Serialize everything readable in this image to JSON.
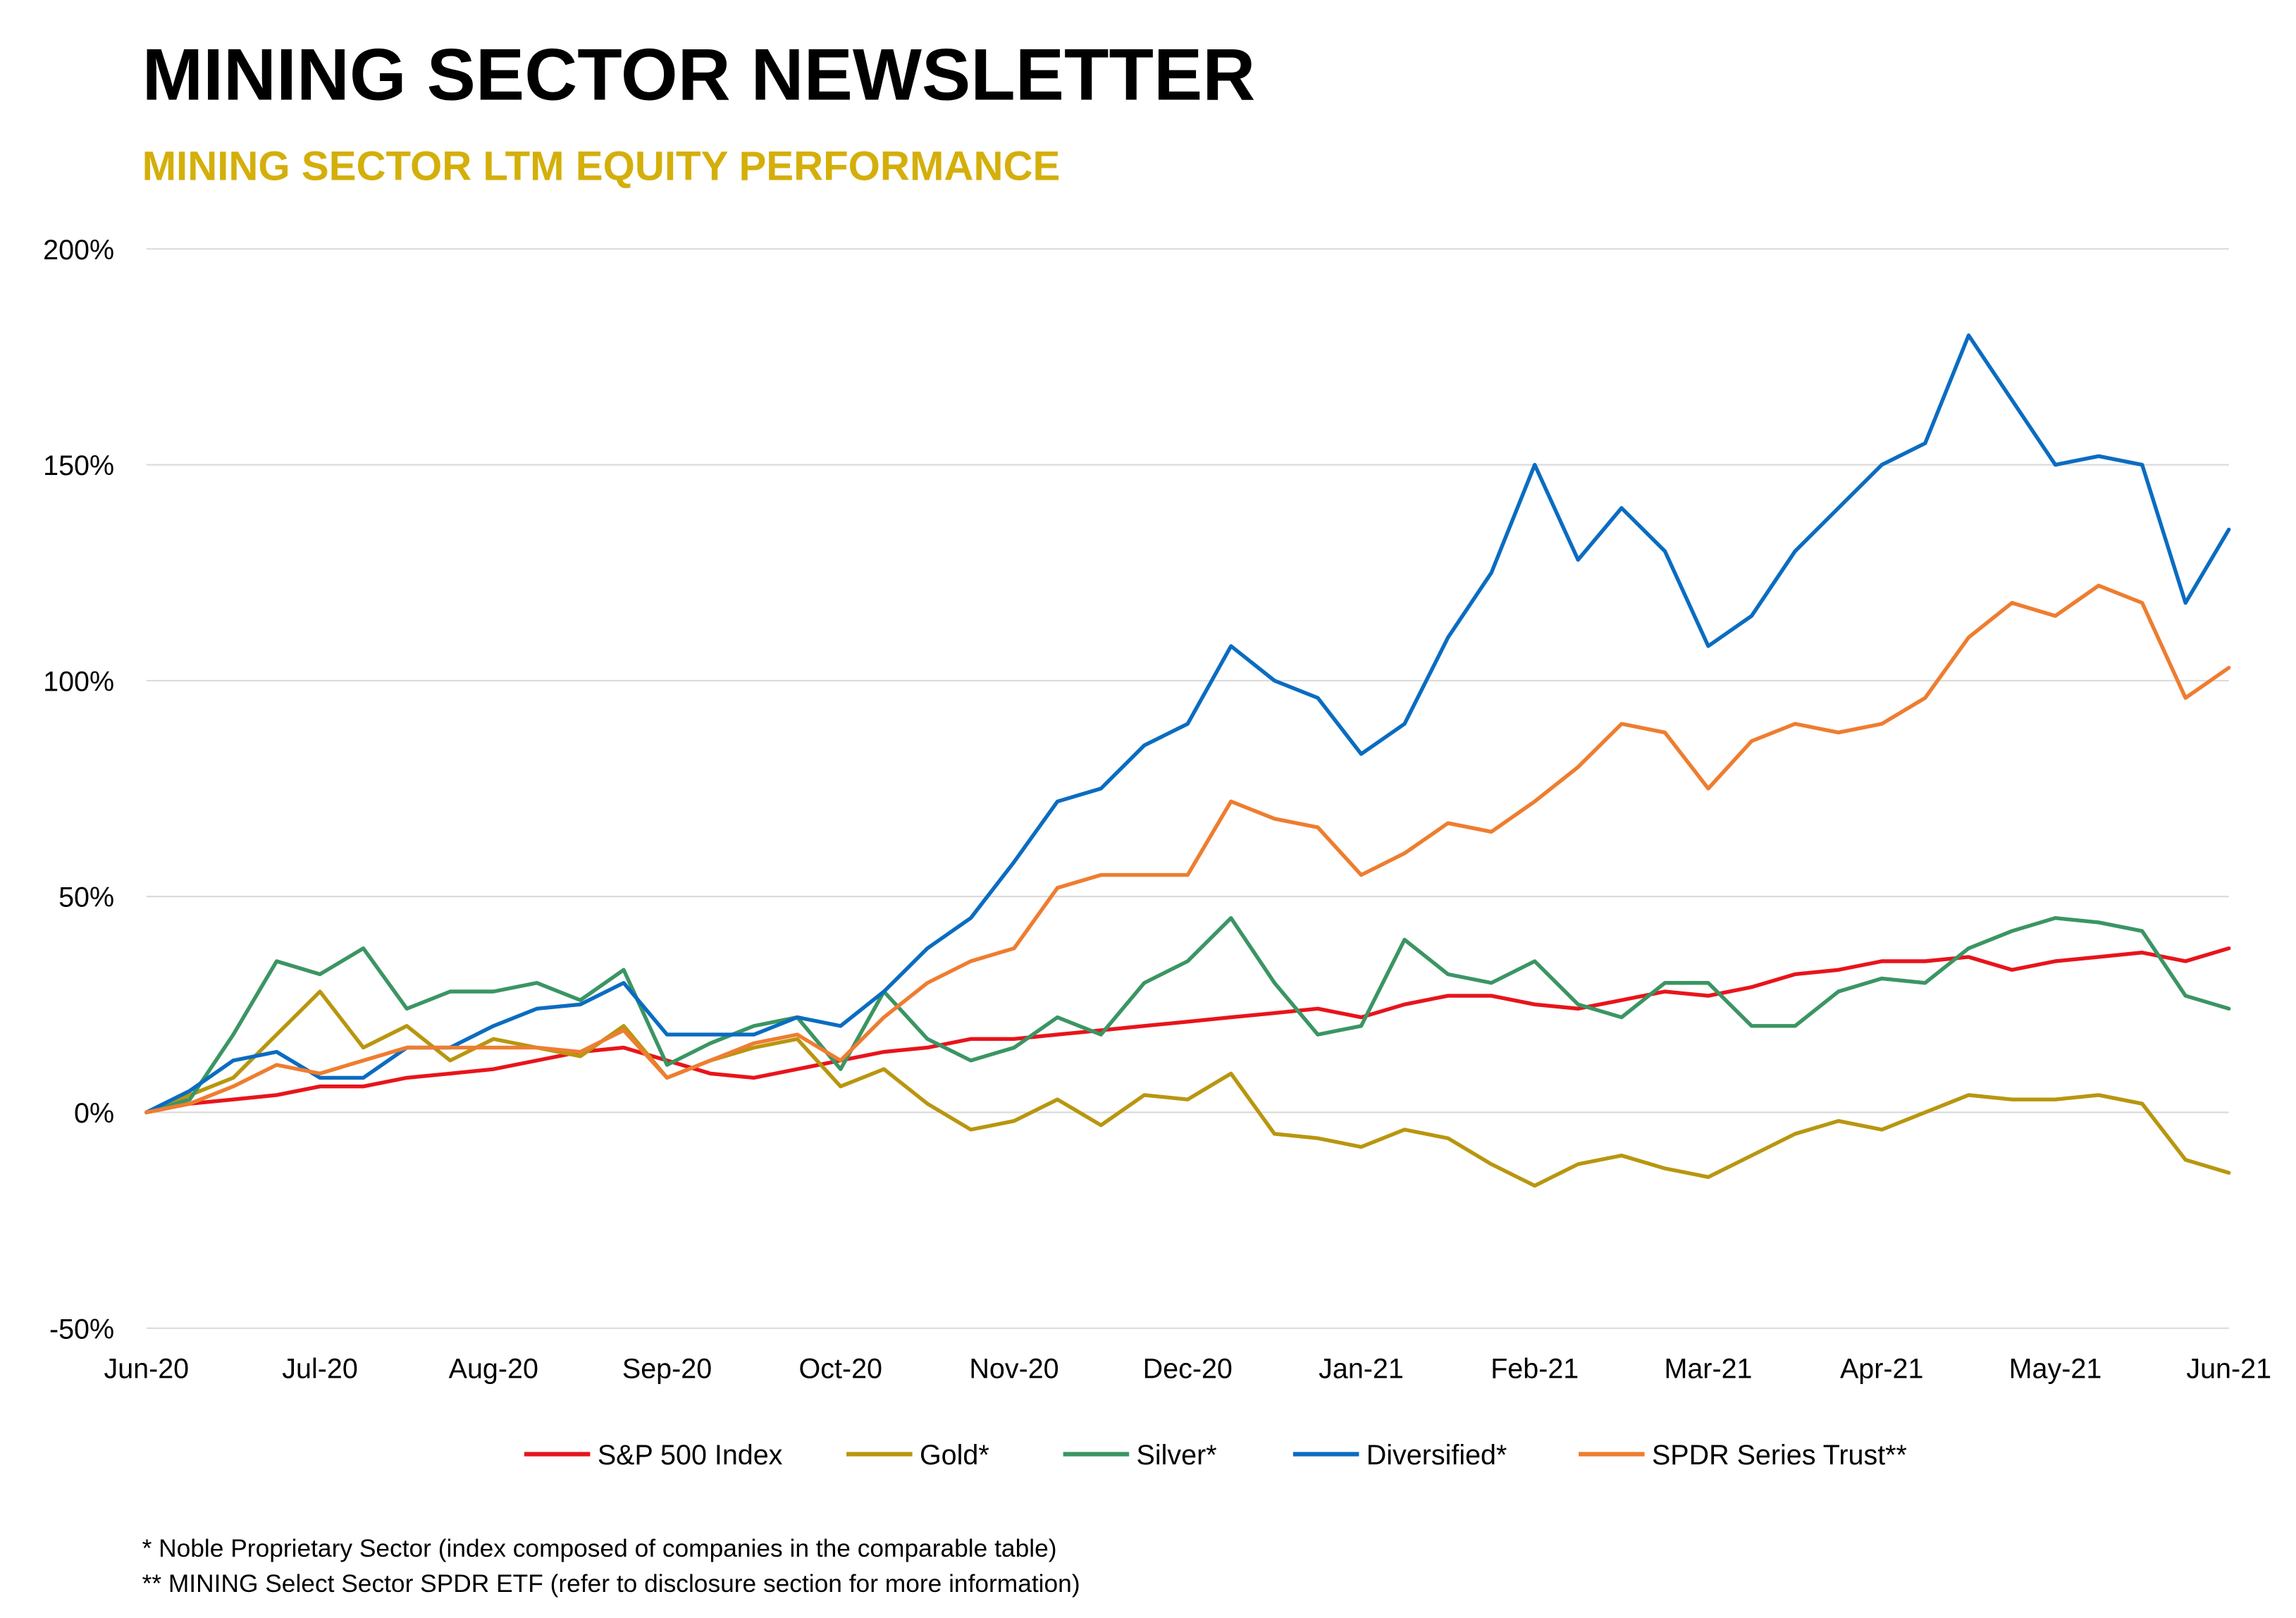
{
  "header": {
    "title": "MINING SECTOR NEWSLETTER",
    "subtitle": "MINING SECTOR LTM EQUITY PERFORMANCE"
  },
  "footnotes": [
    "* Noble Proprietary Sector (index composed of companies in the comparable table)",
    "** MINING Select Sector SPDR ETF (refer to disclosure section for more information)"
  ],
  "chart_data": {
    "type": "line",
    "title": "",
    "xlabel": "",
    "ylabel": "",
    "x_ticks": [
      "Jun-20",
      "Jul-20",
      "Aug-20",
      "Sep-20",
      "Oct-20",
      "Nov-20",
      "Dec-20",
      "Jan-21",
      "Feb-21",
      "Mar-21",
      "Apr-21",
      "May-21",
      "Jun-21"
    ],
    "y_ticks": [
      "200%",
      "150%",
      "100%",
      "50%",
      "0%",
      "-50%"
    ],
    "ylim": [
      -50,
      200
    ],
    "grid": "horizontal",
    "legend_position": "bottom",
    "series": [
      {
        "name": "S&P 500 Index",
        "color": "#E8141B",
        "points": [
          [
            0,
            0
          ],
          [
            0.25,
            2
          ],
          [
            0.5,
            3
          ],
          [
            0.75,
            4
          ],
          [
            1,
            6
          ],
          [
            1.25,
            6
          ],
          [
            1.5,
            8
          ],
          [
            1.75,
            9
          ],
          [
            2,
            10
          ],
          [
            2.25,
            12
          ],
          [
            2.5,
            14
          ],
          [
            2.75,
            15
          ],
          [
            3,
            12
          ],
          [
            3.25,
            9
          ],
          [
            3.5,
            8
          ],
          [
            3.75,
            10
          ],
          [
            4,
            12
          ],
          [
            4.25,
            14
          ],
          [
            4.5,
            15
          ],
          [
            4.75,
            17
          ],
          [
            5,
            17
          ],
          [
            5.25,
            18
          ],
          [
            5.5,
            19
          ],
          [
            5.75,
            20
          ],
          [
            6,
            21
          ],
          [
            6.25,
            22
          ],
          [
            6.5,
            23
          ],
          [
            6.75,
            24
          ],
          [
            7,
            22
          ],
          [
            7.25,
            25
          ],
          [
            7.5,
            27
          ],
          [
            7.75,
            27
          ],
          [
            8,
            25
          ],
          [
            8.25,
            24
          ],
          [
            8.5,
            26
          ],
          [
            8.75,
            28
          ],
          [
            9,
            27
          ],
          [
            9.25,
            29
          ],
          [
            9.5,
            32
          ],
          [
            9.75,
            33
          ],
          [
            10,
            35
          ],
          [
            10.25,
            35
          ],
          [
            10.5,
            36
          ],
          [
            10.75,
            33
          ],
          [
            11,
            35
          ],
          [
            11.25,
            36
          ],
          [
            11.5,
            37
          ],
          [
            11.75,
            35
          ],
          [
            12,
            38
          ]
        ]
      },
      {
        "name": "Gold*",
        "color": "#B8960F",
        "points": [
          [
            0,
            0
          ],
          [
            0.25,
            4
          ],
          [
            0.5,
            8
          ],
          [
            0.75,
            18
          ],
          [
            1,
            28
          ],
          [
            1.25,
            15
          ],
          [
            1.5,
            20
          ],
          [
            1.75,
            12
          ],
          [
            2,
            17
          ],
          [
            2.25,
            15
          ],
          [
            2.5,
            13
          ],
          [
            2.75,
            20
          ],
          [
            3,
            8
          ],
          [
            3.25,
            12
          ],
          [
            3.5,
            15
          ],
          [
            3.75,
            17
          ],
          [
            4,
            6
          ],
          [
            4.25,
            10
          ],
          [
            4.5,
            2
          ],
          [
            4.75,
            -4
          ],
          [
            5,
            -2
          ],
          [
            5.25,
            3
          ],
          [
            5.5,
            -3
          ],
          [
            5.75,
            4
          ],
          [
            6,
            3
          ],
          [
            6.25,
            9
          ],
          [
            6.5,
            -5
          ],
          [
            6.75,
            -6
          ],
          [
            7,
            -8
          ],
          [
            7.25,
            -4
          ],
          [
            7.5,
            -6
          ],
          [
            7.75,
            -12
          ],
          [
            8,
            -17
          ],
          [
            8.25,
            -12
          ],
          [
            8.5,
            -10
          ],
          [
            8.75,
            -13
          ],
          [
            9,
            -15
          ],
          [
            9.25,
            -10
          ],
          [
            9.5,
            -5
          ],
          [
            9.75,
            -2
          ],
          [
            10,
            -4
          ],
          [
            10.25,
            0
          ],
          [
            10.5,
            4
          ],
          [
            10.75,
            3
          ],
          [
            11,
            3
          ],
          [
            11.25,
            4
          ],
          [
            11.5,
            2
          ],
          [
            11.75,
            -11
          ],
          [
            12,
            -14
          ]
        ]
      },
      {
        "name": "Silver*",
        "color": "#3B9563",
        "points": [
          [
            0,
            0
          ],
          [
            0.25,
            3
          ],
          [
            0.5,
            18
          ],
          [
            0.75,
            35
          ],
          [
            1,
            32
          ],
          [
            1.25,
            38
          ],
          [
            1.5,
            24
          ],
          [
            1.75,
            28
          ],
          [
            2,
            28
          ],
          [
            2.25,
            30
          ],
          [
            2.5,
            26
          ],
          [
            2.75,
            33
          ],
          [
            3,
            11
          ],
          [
            3.25,
            16
          ],
          [
            3.5,
            20
          ],
          [
            3.75,
            22
          ],
          [
            4,
            10
          ],
          [
            4.25,
            28
          ],
          [
            4.5,
            17
          ],
          [
            4.75,
            12
          ],
          [
            5,
            15
          ],
          [
            5.25,
            22
          ],
          [
            5.5,
            18
          ],
          [
            5.75,
            30
          ],
          [
            6,
            35
          ],
          [
            6.25,
            45
          ],
          [
            6.5,
            30
          ],
          [
            6.75,
            18
          ],
          [
            7,
            20
          ],
          [
            7.25,
            40
          ],
          [
            7.5,
            32
          ],
          [
            7.75,
            30
          ],
          [
            8,
            35
          ],
          [
            8.25,
            25
          ],
          [
            8.5,
            22
          ],
          [
            8.75,
            30
          ],
          [
            9,
            30
          ],
          [
            9.25,
            20
          ],
          [
            9.5,
            20
          ],
          [
            9.75,
            28
          ],
          [
            10,
            31
          ],
          [
            10.25,
            30
          ],
          [
            10.5,
            38
          ],
          [
            10.75,
            42
          ],
          [
            11,
            45
          ],
          [
            11.25,
            44
          ],
          [
            11.5,
            42
          ],
          [
            11.75,
            27
          ],
          [
            12,
            24
          ]
        ]
      },
      {
        "name": "Diversified*",
        "color": "#0A6CC1",
        "points": [
          [
            0,
            0
          ],
          [
            0.25,
            5
          ],
          [
            0.5,
            12
          ],
          [
            0.75,
            14
          ],
          [
            1,
            8
          ],
          [
            1.25,
            8
          ],
          [
            1.5,
            15
          ],
          [
            1.75,
            15
          ],
          [
            2,
            20
          ],
          [
            2.25,
            24
          ],
          [
            2.5,
            25
          ],
          [
            2.75,
            30
          ],
          [
            3,
            18
          ],
          [
            3.25,
            18
          ],
          [
            3.5,
            18
          ],
          [
            3.75,
            22
          ],
          [
            4,
            20
          ],
          [
            4.25,
            28
          ],
          [
            4.5,
            38
          ],
          [
            4.75,
            45
          ],
          [
            5,
            58
          ],
          [
            5.25,
            72
          ],
          [
            5.5,
            75
          ],
          [
            5.75,
            85
          ],
          [
            6,
            90
          ],
          [
            6.25,
            108
          ],
          [
            6.5,
            100
          ],
          [
            6.75,
            96
          ],
          [
            7,
            83
          ],
          [
            7.25,
            90
          ],
          [
            7.5,
            110
          ],
          [
            7.75,
            125
          ],
          [
            8,
            150
          ],
          [
            8.25,
            128
          ],
          [
            8.5,
            140
          ],
          [
            8.75,
            130
          ],
          [
            9,
            108
          ],
          [
            9.25,
            115
          ],
          [
            9.5,
            130
          ],
          [
            9.75,
            140
          ],
          [
            10,
            150
          ],
          [
            10.25,
            155
          ],
          [
            10.5,
            180
          ],
          [
            10.75,
            165
          ],
          [
            11,
            150
          ],
          [
            11.25,
            152
          ],
          [
            11.5,
            150
          ],
          [
            11.75,
            118
          ],
          [
            12,
            135
          ]
        ]
      },
      {
        "name": "SPDR Series Trust**",
        "color": "#EE7D30",
        "points": [
          [
            0,
            0
          ],
          [
            0.25,
            2
          ],
          [
            0.5,
            6
          ],
          [
            0.75,
            11
          ],
          [
            1,
            9
          ],
          [
            1.25,
            12
          ],
          [
            1.5,
            15
          ],
          [
            1.75,
            15
          ],
          [
            2,
            15
          ],
          [
            2.25,
            15
          ],
          [
            2.5,
            14
          ],
          [
            2.75,
            19
          ],
          [
            3,
            8
          ],
          [
            3.25,
            12
          ],
          [
            3.5,
            16
          ],
          [
            3.75,
            18
          ],
          [
            4,
            12
          ],
          [
            4.25,
            22
          ],
          [
            4.5,
            30
          ],
          [
            4.75,
            35
          ],
          [
            5,
            38
          ],
          [
            5.25,
            52
          ],
          [
            5.5,
            55
          ],
          [
            5.75,
            55
          ],
          [
            6,
            55
          ],
          [
            6.25,
            72
          ],
          [
            6.5,
            68
          ],
          [
            6.75,
            66
          ],
          [
            7,
            55
          ],
          [
            7.25,
            60
          ],
          [
            7.5,
            67
          ],
          [
            7.75,
            65
          ],
          [
            8,
            72
          ],
          [
            8.25,
            80
          ],
          [
            8.5,
            90
          ],
          [
            8.75,
            88
          ],
          [
            9,
            75
          ],
          [
            9.25,
            86
          ],
          [
            9.5,
            90
          ],
          [
            9.75,
            88
          ],
          [
            10,
            90
          ],
          [
            10.25,
            96
          ],
          [
            10.5,
            110
          ],
          [
            10.75,
            118
          ],
          [
            11,
            115
          ],
          [
            11.25,
            122
          ],
          [
            11.5,
            118
          ],
          [
            11.75,
            96
          ],
          [
            12,
            103
          ]
        ]
      }
    ]
  }
}
